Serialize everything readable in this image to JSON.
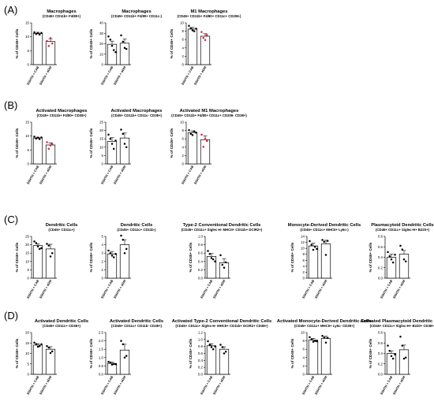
{
  "figure": {
    "panels": [
      {
        "letter": "(A)",
        "chart_indices": [
          0,
          1,
          2
        ]
      },
      {
        "letter": "(B)",
        "chart_indices": [
          3,
          4,
          5
        ]
      },
      {
        "letter": "(C)",
        "chart_indices": [
          6,
          7,
          8,
          9,
          10
        ]
      },
      {
        "letter": "(D)",
        "chart_indices": [
          11,
          12,
          13,
          14,
          15
        ]
      }
    ],
    "colors": {
      "bar_fill": "#ffffff",
      "bar_stroke": "#000000",
      "control_point": "#000000",
      "treated_point": "#e0203a"
    }
  },
  "chart_data": [
    {
      "type": "bar",
      "title": "Macrophages",
      "subtitle": "(CD45+ CD11b+ F4/80+)",
      "ylabel": "% of CD45+ Cells",
      "categories": [
        "SSHTN + CAB",
        "SSHTN + aGM"
      ],
      "ylim": [
        0,
        15
      ],
      "yticks": [
        0,
        5,
        10,
        15
      ],
      "values": [
        11.2,
        8.3
      ],
      "errors": [
        0.4,
        1.0
      ],
      "points": [
        [
          11.6,
          11.0,
          11.3,
          10.8,
          11.4
        ],
        [
          8.5,
          6.7,
          9.5,
          7.6
        ]
      ],
      "point_colors": [
        "#000000",
        "#e0203a"
      ]
    },
    {
      "type": "bar",
      "title": "Macrophages",
      "subtitle": "(CD45+ CD11b+ F4/80+ CD11c-)",
      "ylabel": "% of CD45+ Cells",
      "categories": [
        "SSHTN + CAB",
        "SSHTN + aGM"
      ],
      "ylim": [
        0,
        40
      ],
      "yticks": [
        0,
        10,
        20,
        30,
        40
      ],
      "values": [
        19.5,
        20.5
      ],
      "errors": [
        3.0,
        4.0
      ],
      "points": [
        [
          27,
          24,
          18,
          14,
          12
        ],
        [
          28,
          22,
          16,
          15
        ]
      ],
      "point_colors": [
        "#000000",
        "#000000"
      ]
    },
    {
      "type": "bar",
      "title": "M1 Macrophages",
      "subtitle": "(CD45+ CD11b+ F4/80+ CD11c+ CD206-)",
      "ylabel": "% of CD45+ Cells",
      "categories": [
        "SSHTN + CAB",
        "SSHTN + aGM"
      ],
      "ylim": [
        0,
        10
      ],
      "yticks": [
        0,
        2,
        4,
        6,
        8,
        10
      ],
      "values": [
        8.5,
        6.8
      ],
      "errors": [
        0.4,
        0.6
      ],
      "points": [
        [
          9.3,
          8.7,
          8.2,
          8.0,
          8.6
        ],
        [
          7.8,
          6.4,
          5.9,
          7.1
        ]
      ],
      "point_colors": [
        "#000000",
        "#e0203a"
      ]
    },
    {
      "type": "bar",
      "title": "Activated Macrophages",
      "subtitle": "(CD45+ CD11b+ F4/80+ CD38+)",
      "ylabel": "% of CD45+ Cells",
      "categories": [
        "SSHTN + CAB",
        "SSHTN + aGM"
      ],
      "ylim": [
        0,
        15
      ],
      "yticks": [
        0,
        5,
        10,
        15
      ],
      "values": [
        9.3,
        6.8
      ],
      "errors": [
        0.3,
        0.8
      ],
      "points": [
        [
          9.8,
          9.1,
          9.4,
          8.9,
          9.5
        ],
        [
          7.8,
          5.4,
          6.6,
          7.2
        ]
      ],
      "point_colors": [
        "#000000",
        "#e0203a"
      ]
    },
    {
      "type": "bar",
      "title": "Activated Macrophages",
      "subtitle": "(CD45+ CD11b+ CD11c- CD38+)",
      "ylabel": "% of CD45+ Cells",
      "categories": [
        "SSHTN + CAB",
        "SSHTN + aGM"
      ],
      "ylim": [
        0,
        25
      ],
      "yticks": [
        0,
        5,
        10,
        15,
        20,
        25
      ],
      "values": [
        13.5,
        15.5
      ],
      "errors": [
        2.2,
        3.0
      ],
      "points": [
        [
          17.5,
          15,
          12,
          9,
          14
        ],
        [
          20.5,
          18,
          12,
          10
        ]
      ],
      "point_colors": [
        "#000000",
        "#000000"
      ]
    },
    {
      "type": "bar",
      "title": "Activated M1 Macrophages",
      "subtitle": "(CD45+ CD11b+ F4/80+ CD11c+ CD206- CD38+)",
      "ylabel": "% of CD45+ Cells",
      "categories": [
        "SSHTN + CAB",
        "SSHTN + aGM"
      ],
      "ylim": [
        0,
        10
      ],
      "yticks": [
        0,
        2,
        4,
        6,
        8,
        10
      ],
      "values": [
        7.5,
        5.8
      ],
      "errors": [
        0.4,
        0.9
      ],
      "points": [
        [
          8.1,
          7.2,
          6.9,
          7.8,
          7.5
        ],
        [
          7.0,
          4.1,
          6.0,
          5.5
        ]
      ],
      "point_colors": [
        "#000000",
        "#e0203a"
      ]
    },
    {
      "type": "bar",
      "title": "Dendritic Cells",
      "subtitle": "(CD45+ CD11c+)",
      "ylabel": "% of CD45+ Cells",
      "categories": [
        "SSHTN + CAB",
        "SSHTN + aGM"
      ],
      "ylim": [
        0,
        25
      ],
      "yticks": [
        0,
        5,
        10,
        15,
        20,
        25
      ],
      "values": [
        19.5,
        17.5
      ],
      "errors": [
        1.0,
        2.8
      ],
      "points": [
        [
          22,
          21,
          19,
          17.5,
          18
        ],
        [
          20.5,
          19.5,
          13,
          15
        ]
      ],
      "point_colors": [
        "#000000",
        "#000000"
      ]
    },
    {
      "type": "bar",
      "title": "Dendritic Cells",
      "subtitle": "(CD45+ CD11c+ CD11b-)",
      "ylabel": "% of CD45+ Cells",
      "categories": [
        "SSHTN + CAB",
        "SSHTN + aGM"
      ],
      "ylim": [
        0,
        5
      ],
      "yticks": [
        0,
        1,
        2,
        3,
        4,
        5
      ],
      "values": [
        2.9,
        4.0
      ],
      "errors": [
        0.3,
        0.6
      ],
      "points": [
        [
          3.3,
          3.0,
          2.7,
          2.5,
          2.9
        ],
        [
          5.1,
          4.6,
          3.0,
          3.5
        ]
      ],
      "point_colors": [
        "#000000",
        "#000000"
      ]
    },
    {
      "type": "bar",
      "title": "Type-2 Conventional Dendritic Cells",
      "subtitle": "(CD45+ CD11c+ Siglec-H- MHCII+ CD11b+ DCIR2+)",
      "ylabel": "% of CD45+ Cells",
      "categories": [
        "SSHTN + CAB",
        "SSHTN + aGM"
      ],
      "ylim": [
        0,
        1.0
      ],
      "yticks": [
        0.0,
        0.2,
        0.4,
        0.6,
        0.8,
        1.0
      ],
      "values": [
        0.52,
        0.37
      ],
      "errors": [
        0.07,
        0.09
      ],
      "points": [
        [
          0.65,
          0.58,
          0.48,
          0.45,
          0.4
        ],
        [
          0.55,
          0.32,
          0.25,
          0.38
        ]
      ],
      "point_colors": [
        "#000000",
        "#000000"
      ]
    },
    {
      "type": "bar",
      "title": "Monocyte-Derived Dendritic Cells",
      "subtitle": "(CD45+ CD11c+ MHCII+ Ly6c-)",
      "ylabel": "% of CD45+ Cells",
      "categories": [
        "SSHTN + CAB",
        "SSHTN + aGM"
      ],
      "ylim": [
        0,
        14
      ],
      "yticks": [
        0,
        2,
        4,
        6,
        8,
        10,
        12,
        14
      ],
      "values": [
        10.8,
        11.5
      ],
      "errors": [
        0.9,
        1.2
      ],
      "points": [
        [
          12.4,
          11.2,
          9.5,
          10.5,
          9.8
        ],
        [
          12.8,
          12.2,
          7.8,
          12.5
        ]
      ],
      "point_colors": [
        "#000000",
        "#000000"
      ]
    },
    {
      "type": "bar",
      "title": "Plasmacytoid Dendritic Cells",
      "subtitle": "(CD45+ CD11c+ Siglec-H+ B220+)",
      "ylabel": "% of CD45+ Cells",
      "categories": [
        "SSHTN + CAB",
        "SSHTN + aGM"
      ],
      "ylim": [
        0,
        0.8
      ],
      "yticks": [
        0.0,
        0.2,
        0.4,
        0.6,
        0.8
      ],
      "values": [
        0.4,
        0.46
      ],
      "errors": [
        0.06,
        0.07
      ],
      "points": [
        [
          0.5,
          0.42,
          0.36,
          0.3,
          0.45
        ],
        [
          0.62,
          0.55,
          0.36,
          0.32
        ]
      ],
      "point_colors": [
        "#000000",
        "#000000"
      ]
    },
    {
      "type": "bar",
      "title": "Activated Dendritic Cells",
      "subtitle": "(CD45+ CD11c+ CD38+)",
      "ylabel": "% of CD45+ Cells",
      "categories": [
        "SSHTN + CAB",
        "SSHTN + aGM"
      ],
      "ylim": [
        0,
        20
      ],
      "yticks": [
        0,
        5,
        10,
        15,
        20
      ],
      "values": [
        14.0,
        12.0
      ],
      "errors": [
        0.7,
        1.2
      ],
      "points": [
        [
          15.2,
          14.5,
          13.2,
          13.5,
          14.4
        ],
        [
          13.5,
          12.8,
          10.2,
          11.0
        ]
      ],
      "point_colors": [
        "#000000",
        "#000000"
      ]
    },
    {
      "type": "bar",
      "title": "Activated Dendritic Cells",
      "subtitle": "(CD45+ CD11c+ CD11b- CD38+)",
      "ylabel": "% of CD45+ Cells",
      "categories": [
        "SSHTN + CAB",
        "SSHTN + aGM"
      ],
      "ylim": [
        0,
        2.5
      ],
      "yticks": [
        0.0,
        0.5,
        1.0,
        1.5,
        2.0,
        2.5
      ],
      "values": [
        0.65,
        1.45
      ],
      "errors": [
        0.08,
        0.35
      ],
      "points": [
        [
          0.75,
          0.7,
          0.58,
          0.62,
          0.6
        ],
        [
          2.0,
          1.8,
          1.0,
          1.1
        ]
      ],
      "point_colors": [
        "#000000",
        "#000000"
      ]
    },
    {
      "type": "bar",
      "title": "Activated Type-2 Conventional Dendritic Cells",
      "subtitle": "(CD45+ CD11c+ Siglec-H- MHCII+ CD11b+ DCIR2+ CD38+)",
      "ylabel": "% of CD45+ Cells",
      "categories": [
        "SSHTN + CAB",
        "SSHTN + aGM"
      ],
      "ylim": [
        0,
        1.2
      ],
      "yticks": [
        0.0,
        0.2,
        0.4,
        0.6,
        0.8,
        1.0,
        1.2
      ],
      "values": [
        0.82,
        0.72
      ],
      "errors": [
        0.06,
        0.07
      ],
      "points": [
        [
          0.95,
          0.85,
          0.78,
          0.72,
          0.8
        ],
        [
          0.85,
          0.78,
          0.6,
          0.65
        ]
      ],
      "point_colors": [
        "#000000",
        "#000000"
      ]
    },
    {
      "type": "bar",
      "title": "Activated Monocyte-Derived Dendritic Cells",
      "subtitle": "(CD45+ CD11c+ MHCII+ Ly6c- CD38+)",
      "ylabel": "% of CD45+ Cells",
      "categories": [
        "SSHTN + CAB",
        "SSHTN + aGM"
      ],
      "ylim": [
        0,
        10
      ],
      "yticks": [
        0,
        2,
        4,
        6,
        8,
        10
      ],
      "values": [
        8.2,
        8.6
      ],
      "errors": [
        0.4,
        0.5
      ],
      "points": [
        [
          8.9,
          8.4,
          7.8,
          8.0,
          7.9
        ],
        [
          9.2,
          8.8,
          7.6,
          8.7
        ]
      ],
      "point_colors": [
        "#000000",
        "#000000"
      ]
    },
    {
      "type": "bar",
      "title": "Activated Plasmacytoid Dendritic Cells",
      "subtitle": "(CD45+ CD11c+ Siglec-H+ B220+ CD38+)",
      "ylabel": "% of CD45+ Cells",
      "categories": [
        "SSHTN + CAB",
        "SSHTN + aGM"
      ],
      "ylim": [
        0,
        0.8
      ],
      "yticks": [
        0.0,
        0.2,
        0.4,
        0.6,
        0.8
      ],
      "values": [
        0.4,
        0.47
      ],
      "errors": [
        0.05,
        0.09
      ],
      "points": [
        [
          0.55,
          0.45,
          0.35,
          0.3,
          0.38
        ],
        [
          0.72,
          0.55,
          0.3,
          0.32
        ]
      ],
      "point_colors": [
        "#000000",
        "#000000"
      ]
    }
  ]
}
